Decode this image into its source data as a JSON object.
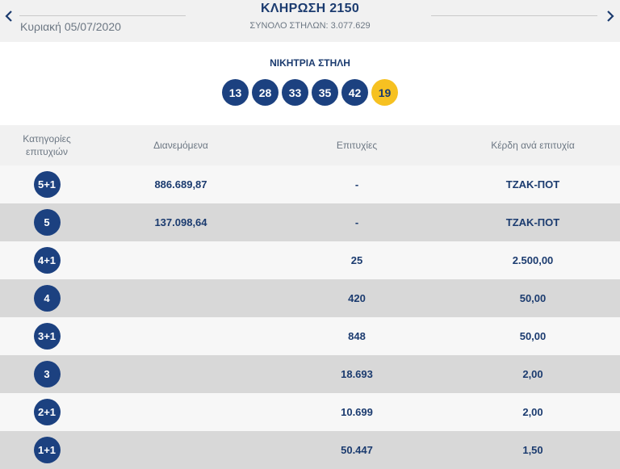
{
  "header": {
    "date": "Κυριακή 05/07/2020",
    "title": "ΚΛΗΡΩΣΗ 2150",
    "total_columns": "ΣΥΝΟΛΟ ΣΤΗΛΩΝ: 3.077.629",
    "prev_icon": "chevron-left-icon",
    "next_icon": "chevron-right-icon"
  },
  "winning": {
    "label": "ΝΙΚΗΤΡΙΑ ΣΤΗΛΗ",
    "numbers": [
      "13",
      "28",
      "33",
      "35",
      "42"
    ],
    "joker": "19",
    "colors": {
      "ball": "#1c4180",
      "joker": "#f6c121"
    }
  },
  "table": {
    "headers": {
      "category": "Κατηγορίες επιτυχιών",
      "distributed": "Διανεμόμενα",
      "winners": "Επιτυχίες",
      "prize": "Κέρδη ανά επιτυχία"
    },
    "rows": [
      {
        "category": "5+1",
        "distributed": "886.689,87",
        "winners": "-",
        "prize": "ΤΖΑΚ-ΠΟΤ"
      },
      {
        "category": "5",
        "distributed": "137.098,64",
        "winners": "-",
        "prize": "ΤΖΑΚ-ΠΟΤ"
      },
      {
        "category": "4+1",
        "distributed": "",
        "winners": "25",
        "prize": "2.500,00"
      },
      {
        "category": "4",
        "distributed": "",
        "winners": "420",
        "prize": "50,00"
      },
      {
        "category": "3+1",
        "distributed": "",
        "winners": "848",
        "prize": "50,00"
      },
      {
        "category": "3",
        "distributed": "",
        "winners": "18.693",
        "prize": "2,00"
      },
      {
        "category": "2+1",
        "distributed": "",
        "winners": "10.699",
        "prize": "2,00"
      },
      {
        "category": "1+1",
        "distributed": "",
        "winners": "50.447",
        "prize": "1,50"
      }
    ]
  }
}
